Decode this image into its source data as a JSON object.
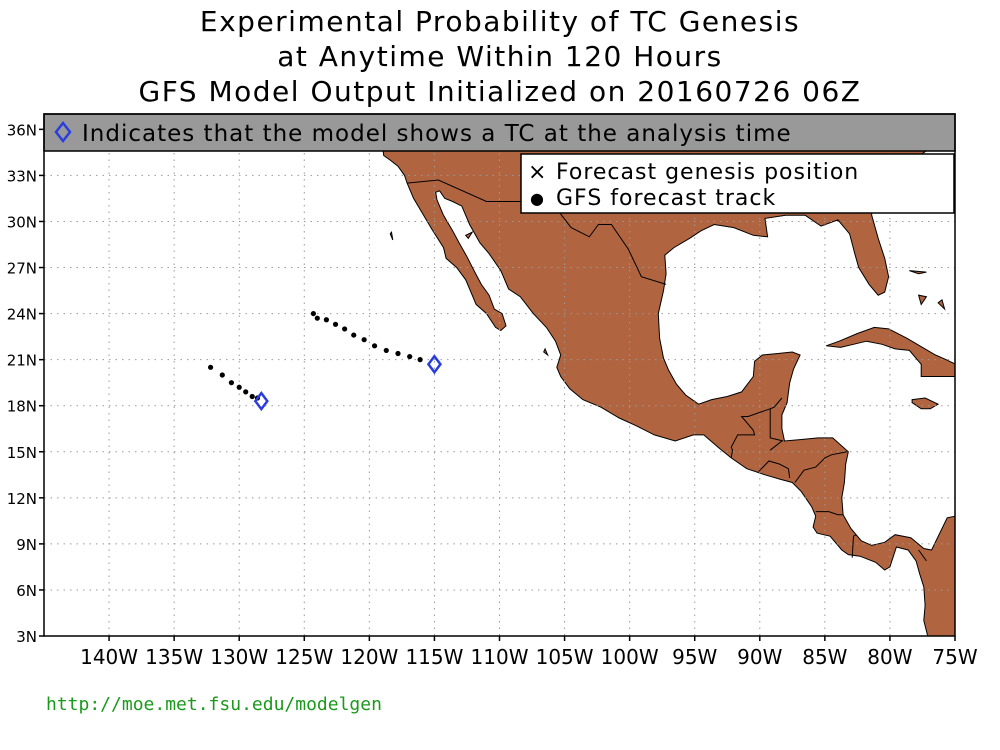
{
  "header": {
    "title_line1": "Experimental Probability of TC Genesis",
    "title_line2": "at Anytime Within 120 Hours",
    "title_line3": "GFS Model Output Initialized on 20160726 06Z"
  },
  "banner": {
    "text": "Indicates that the model shows a TC at the analysis time",
    "background": "#999999",
    "icon": "diamond-icon"
  },
  "legend": {
    "genesis_label": "Forecast genesis position",
    "genesis_symbol": "×",
    "track_label": "GFS forecast track",
    "track_symbol": "●"
  },
  "map": {
    "lon_range": [
      -145,
      -75
    ],
    "lat_range": [
      3,
      37
    ],
    "land_color": "#b06540",
    "diamond_color": "#2a3ee0",
    "lat_ticks": [
      {
        "value": 3,
        "label": "3N"
      },
      {
        "value": 6,
        "label": "6N"
      },
      {
        "value": 9,
        "label": "9N"
      },
      {
        "value": 12,
        "label": "12N"
      },
      {
        "value": 15,
        "label": "15N"
      },
      {
        "value": 18,
        "label": "18N"
      },
      {
        "value": 21,
        "label": "21N"
      },
      {
        "value": 24,
        "label": "24N"
      },
      {
        "value": 27,
        "label": "27N"
      },
      {
        "value": 30,
        "label": "30N"
      },
      {
        "value": 33,
        "label": "33N"
      },
      {
        "value": 36,
        "label": "36N"
      }
    ],
    "lon_ticks": [
      {
        "value": -140,
        "label": "140W"
      },
      {
        "value": -135,
        "label": "135W"
      },
      {
        "value": -130,
        "label": "130W"
      },
      {
        "value": -125,
        "label": "125W"
      },
      {
        "value": -120,
        "label": "120W"
      },
      {
        "value": -115,
        "label": "115W"
      },
      {
        "value": -110,
        "label": "110W"
      },
      {
        "value": -105,
        "label": "105W"
      },
      {
        "value": -100,
        "label": "100W"
      },
      {
        "value": -95,
        "label": "95W"
      },
      {
        "value": -90,
        "label": "90W"
      },
      {
        "value": -85,
        "label": "85W"
      },
      {
        "value": -80,
        "label": "80W"
      },
      {
        "value": -75,
        "label": "75W"
      }
    ],
    "tracks": [
      {
        "analysis_position": [
          -128.3,
          18.3
        ],
        "points": [
          [
            -132.2,
            20.5
          ],
          [
            -131.3,
            20.0
          ],
          [
            -130.6,
            19.5
          ],
          [
            -130.0,
            19.2
          ],
          [
            -129.5,
            18.9
          ],
          [
            -129.0,
            18.6
          ],
          [
            -128.6,
            18.5
          ]
        ]
      },
      {
        "analysis_position": [
          -115.0,
          20.7
        ],
        "points": [
          [
            -124.3,
            24.0
          ],
          [
            -124.0,
            23.7
          ],
          [
            -123.3,
            23.6
          ],
          [
            -122.6,
            23.3
          ],
          [
            -121.9,
            23.0
          ],
          [
            -121.2,
            22.6
          ],
          [
            -120.4,
            22.3
          ],
          [
            -119.6,
            21.9
          ],
          [
            -118.7,
            21.6
          ],
          [
            -117.8,
            21.4
          ],
          [
            -116.9,
            21.2
          ],
          [
            -116.1,
            21.0
          ]
        ]
      }
    ],
    "coastlines": [
      [
        [
          -117.1,
          32.5
        ],
        [
          -116.6,
          31.5
        ],
        [
          -115.9,
          30.5
        ],
        [
          -115.2,
          29.5
        ],
        [
          -114.3,
          28.3
        ],
        [
          -114.1,
          27.6
        ],
        [
          -113.3,
          27.0
        ],
        [
          -112.6,
          26.2
        ],
        [
          -112.2,
          25.4
        ],
        [
          -111.8,
          24.6
        ],
        [
          -111.0,
          24.0
        ],
        [
          -110.3,
          23.1
        ],
        [
          -109.9,
          22.9
        ],
        [
          -109.5,
          23.2
        ],
        [
          -109.8,
          24.0
        ],
        [
          -110.4,
          24.3
        ],
        [
          -110.8,
          25.2
        ],
        [
          -111.4,
          25.9
        ],
        [
          -111.9,
          26.7
        ],
        [
          -112.5,
          27.7
        ],
        [
          -113.1,
          28.6
        ],
        [
          -113.6,
          29.4
        ],
        [
          -114.3,
          30.4
        ],
        [
          -114.8,
          31.4
        ],
        [
          -114.9,
          31.9
        ],
        [
          -114.6,
          32.0
        ],
        [
          -114.2,
          31.5
        ],
        [
          -113.6,
          31.3
        ],
        [
          -112.9,
          31.0
        ],
        [
          -112.3,
          29.8
        ],
        [
          -111.5,
          28.6
        ],
        [
          -110.8,
          27.9
        ],
        [
          -109.9,
          26.8
        ],
        [
          -109.3,
          25.6
        ],
        [
          -108.4,
          25.1
        ],
        [
          -107.4,
          24.0
        ],
        [
          -106.4,
          23.1
        ],
        [
          -105.7,
          22.2
        ],
        [
          -105.3,
          21.3
        ],
        [
          -105.6,
          20.5
        ],
        [
          -105.3,
          19.9
        ],
        [
          -104.6,
          19.1
        ],
        [
          -103.6,
          18.4
        ],
        [
          -102.2,
          17.9
        ],
        [
          -100.8,
          17.2
        ],
        [
          -99.5,
          16.7
        ],
        [
          -98.1,
          16.1
        ],
        [
          -96.5,
          15.7
        ],
        [
          -95.1,
          16.1
        ],
        [
          -94.3,
          16.1
        ],
        [
          -93.2,
          15.3
        ],
        [
          -92.2,
          14.6
        ],
        [
          -91.0,
          13.9
        ],
        [
          -89.6,
          13.5
        ],
        [
          -88.4,
          13.2
        ],
        [
          -87.5,
          13.0
        ],
        [
          -86.8,
          12.4
        ],
        [
          -86.0,
          11.4
        ],
        [
          -85.7,
          10.8
        ],
        [
          -85.9,
          10.1
        ],
        [
          -85.6,
          9.7
        ],
        [
          -85.1,
          9.6
        ],
        [
          -84.6,
          9.5
        ],
        [
          -83.7,
          8.6
        ],
        [
          -83.2,
          8.3
        ],
        [
          -82.3,
          8.2
        ],
        [
          -81.1,
          7.8
        ],
        [
          -80.4,
          7.3
        ],
        [
          -80.0,
          7.5
        ],
        [
          -79.5,
          8.8
        ],
        [
          -78.6,
          8.6
        ],
        [
          -78.0,
          7.9
        ],
        [
          -77.7,
          7.0
        ],
        [
          -77.4,
          6.2
        ],
        [
          -77.3,
          5.0
        ],
        [
          -77.4,
          4.0
        ],
        [
          -77.1,
          3.0
        ],
        [
          -75.0,
          3.0
        ],
        [
          -75.0,
          10.8
        ],
        [
          -75.6,
          10.7
        ],
        [
          -76.8,
          8.6
        ],
        [
          -77.4,
          8.7
        ],
        [
          -78.4,
          9.4
        ],
        [
          -79.6,
          9.6
        ],
        [
          -80.4,
          9.1
        ],
        [
          -81.4,
          8.9
        ],
        [
          -82.2,
          9.2
        ],
        [
          -83.0,
          10.0
        ],
        [
          -83.6,
          10.9
        ],
        [
          -83.7,
          12.0
        ],
        [
          -83.5,
          13.0
        ],
        [
          -83.4,
          14.2
        ],
        [
          -83.2,
          15.0
        ],
        [
          -84.4,
          15.9
        ],
        [
          -85.5,
          15.9
        ],
        [
          -86.8,
          15.8
        ],
        [
          -88.1,
          15.7
        ],
        [
          -88.3,
          16.5
        ],
        [
          -88.3,
          17.4
        ],
        [
          -87.9,
          18.2
        ],
        [
          -87.7,
          19.5
        ],
        [
          -87.4,
          20.4
        ],
        [
          -86.9,
          21.3
        ],
        [
          -87.5,
          21.5
        ],
        [
          -88.6,
          21.4
        ],
        [
          -89.8,
          21.3
        ],
        [
          -90.4,
          20.9
        ],
        [
          -90.5,
          19.9
        ],
        [
          -91.4,
          18.9
        ],
        [
          -92.5,
          18.6
        ],
        [
          -93.7,
          18.4
        ],
        [
          -94.7,
          18.1
        ],
        [
          -95.7,
          18.7
        ],
        [
          -96.4,
          19.4
        ],
        [
          -97.0,
          20.3
        ],
        [
          -97.4,
          21.1
        ],
        [
          -97.7,
          22.4
        ],
        [
          -97.8,
          24.0
        ],
        [
          -97.4,
          25.5
        ],
        [
          -97.2,
          26.6
        ],
        [
          -97.3,
          27.8
        ],
        [
          -96.6,
          28.3
        ],
        [
          -95.4,
          28.9
        ],
        [
          -94.5,
          29.4
        ],
        [
          -93.5,
          29.8
        ],
        [
          -92.0,
          29.6
        ],
        [
          -90.5,
          29.1
        ],
        [
          -89.4,
          29.0
        ],
        [
          -89.6,
          30.2
        ],
        [
          -88.0,
          30.4
        ],
        [
          -86.5,
          30.4
        ],
        [
          -85.3,
          29.7
        ],
        [
          -84.0,
          30.1
        ],
        [
          -83.1,
          29.2
        ],
        [
          -82.7,
          27.9
        ],
        [
          -82.4,
          27.0
        ],
        [
          -81.6,
          25.9
        ],
        [
          -80.9,
          25.2
        ],
        [
          -80.4,
          25.4
        ],
        [
          -80.1,
          26.4
        ],
        [
          -80.4,
          27.6
        ],
        [
          -80.9,
          28.9
        ],
        [
          -81.4,
          30.4
        ],
        [
          -81.4,
          31.5
        ],
        [
          -80.9,
          32.2
        ],
        [
          -80.0,
          32.8
        ],
        [
          -79.3,
          33.4
        ],
        [
          -78.6,
          33.9
        ],
        [
          -77.9,
          34.2
        ],
        [
          -77.2,
          34.6
        ],
        [
          -76.5,
          35.0
        ],
        [
          -75.8,
          35.2
        ],
        [
          -75.5,
          35.9
        ],
        [
          -75.7,
          37.0
        ],
        [
          -119.3,
          37.0
        ],
        [
          -118.9,
          34.3
        ],
        [
          -118.4,
          34.0
        ],
        [
          -117.8,
          33.6
        ],
        [
          -117.3,
          33.0
        ],
        [
          -117.1,
          32.5
        ]
      ],
      [
        [
          -84.9,
          21.9
        ],
        [
          -83.9,
          22.2
        ],
        [
          -82.5,
          22.7
        ],
        [
          -81.2,
          23.1
        ],
        [
          -80.1,
          23.0
        ],
        [
          -78.7,
          22.4
        ],
        [
          -77.5,
          21.8
        ],
        [
          -76.5,
          21.3
        ],
        [
          -75.7,
          21.0
        ],
        [
          -74.7,
          20.6
        ],
        [
          -75.0,
          19.9
        ],
        [
          -76.3,
          19.9
        ],
        [
          -77.6,
          19.9
        ],
        [
          -77.6,
          20.7
        ],
        [
          -78.5,
          21.6
        ],
        [
          -79.6,
          21.7
        ],
        [
          -80.6,
          22.0
        ],
        [
          -81.8,
          22.2
        ],
        [
          -82.8,
          22.0
        ],
        [
          -83.8,
          21.8
        ],
        [
          -84.9,
          21.9
        ]
      ],
      [
        [
          -78.3,
          18.4
        ],
        [
          -77.3,
          18.5
        ],
        [
          -76.3,
          18.1
        ],
        [
          -76.9,
          17.8
        ],
        [
          -77.6,
          17.8
        ],
        [
          -78.3,
          18.2
        ],
        [
          -78.3,
          18.4
        ]
      ],
      [
        [
          -75.0,
          19.8
        ],
        [
          -75.0,
          17.9
        ],
        [
          -75.0,
          19.8
        ]
      ]
    ],
    "borders": [
      [
        [
          -117.1,
          32.5
        ],
        [
          -114.7,
          32.7
        ],
        [
          -111.0,
          31.3
        ],
        [
          -108.2,
          31.3
        ],
        [
          -108.2,
          31.8
        ],
        [
          -106.5,
          31.8
        ],
        [
          -104.5,
          29.6
        ],
        [
          -103.1,
          29.0
        ],
        [
          -102.4,
          29.8
        ],
        [
          -101.4,
          29.8
        ],
        [
          -100.1,
          28.2
        ],
        [
          -99.1,
          26.4
        ],
        [
          -97.2,
          25.9
        ]
      ],
      [
        [
          -120.0,
          37.0
        ],
        [
          -120.0,
          39.0
        ]
      ],
      [
        [
          -92.2,
          14.6
        ],
        [
          -92.1,
          15.1
        ],
        [
          -92.2,
          15.3
        ],
        [
          -91.7,
          16.1
        ],
        [
          -90.4,
          16.1
        ],
        [
          -90.5,
          16.4
        ],
        [
          -91.4,
          17.3
        ],
        [
          -90.9,
          17.3
        ],
        [
          -89.2,
          17.8
        ],
        [
          -89.2,
          15.9
        ],
        [
          -88.2,
          15.7
        ]
      ],
      [
        [
          -89.2,
          17.8
        ],
        [
          -88.9,
          17.9
        ],
        [
          -88.3,
          18.5
        ]
      ],
      [
        [
          -90.1,
          13.7
        ],
        [
          -89.3,
          14.4
        ],
        [
          -88.5,
          14.2
        ],
        [
          -87.8,
          13.9
        ],
        [
          -87.7,
          13.3
        ]
      ],
      [
        [
          -89.2,
          15.1
        ],
        [
          -88.3,
          15.7
        ]
      ],
      [
        [
          -87.3,
          13.0
        ],
        [
          -86.6,
          13.8
        ],
        [
          -85.7,
          14.0
        ],
        [
          -85.0,
          14.6
        ],
        [
          -84.5,
          14.8
        ],
        [
          -83.3,
          15.0
        ]
      ],
      [
        [
          -85.7,
          11.1
        ],
        [
          -84.7,
          11.1
        ],
        [
          -84.0,
          10.9
        ],
        [
          -83.6,
          10.9
        ]
      ],
      [
        [
          -82.9,
          8.1
        ],
        [
          -82.8,
          9.5
        ],
        [
          -82.6,
          9.6
        ]
      ],
      [
        [
          -77.2,
          7.9
        ],
        [
          -77.8,
          8.6
        ]
      ]
    ],
    "islands": [
      [
        [
          -118.4,
          29.2
        ],
        [
          -118.2,
          28.8
        ],
        [
          -118.3,
          29.3
        ],
        [
          -118.4,
          29.2
        ]
      ],
      [
        [
          -106.5,
          21.7
        ],
        [
          -106.3,
          21.3
        ],
        [
          -106.6,
          21.5
        ],
        [
          -106.5,
          21.7
        ]
      ],
      [
        [
          -112.1,
          29.3
        ],
        [
          -112.4,
          28.9
        ],
        [
          -112.6,
          29.1
        ],
        [
          -112.1,
          29.3
        ]
      ],
      [
        [
          -77.2,
          25.1
        ],
        [
          -77.6,
          24.6
        ],
        [
          -77.8,
          25.2
        ],
        [
          -77.2,
          25.1
        ]
      ],
      [
        [
          -78.5,
          26.8
        ],
        [
          -77.8,
          26.6
        ],
        [
          -77.2,
          26.7
        ],
        [
          -78.5,
          26.8
        ]
      ],
      [
        [
          -76.3,
          24.7
        ],
        [
          -75.8,
          24.3
        ],
        [
          -76.0,
          24.9
        ],
        [
          -76.3,
          24.7
        ]
      ]
    ]
  }
}
